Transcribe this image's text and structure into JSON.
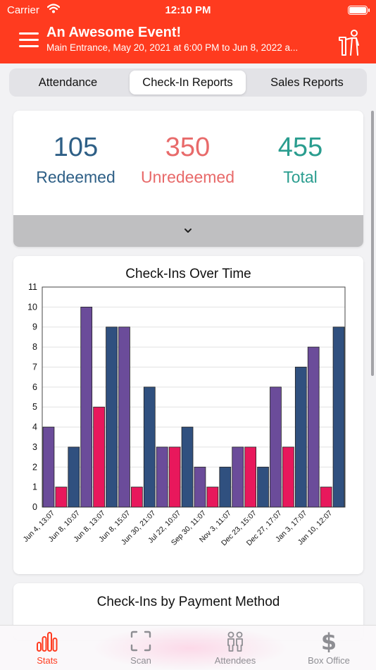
{
  "status_bar": {
    "carrier": "Carrier",
    "time": "12:10 PM"
  },
  "header": {
    "title": "An Awesome Event!",
    "subtitle": "Main Entrance, May 20, 2021 at 6:00 PM to Jun  8, 2022 a..."
  },
  "tabs": [
    {
      "label": "Attendance",
      "active": false
    },
    {
      "label": "Check-In Reports",
      "active": true
    },
    {
      "label": "Sales Reports",
      "active": false
    }
  ],
  "summary": {
    "redeemed": {
      "value": "105",
      "label": "Redeemed",
      "color": "#2e5f86"
    },
    "unredeemed": {
      "value": "350",
      "label": "Unredeemed",
      "color": "#e86a6a"
    },
    "total": {
      "value": "455",
      "label": "Total",
      "color": "#2a9d8f"
    }
  },
  "chart_data": {
    "type": "bar",
    "title": "Check-Ins Over Time",
    "ylim": [
      0,
      11
    ],
    "yticks": [
      0,
      1,
      2,
      3,
      4,
      5,
      6,
      7,
      8,
      9,
      10,
      11
    ],
    "grid": true,
    "categories": [
      "Jun 4, 13:07",
      "Jun 8, 10:07",
      "Jun 8, 13:07",
      "Jun 8, 15:07",
      "Jun 30, 21:07",
      "Jul 22, 10:07",
      "Sep 30, 11:07",
      "Nov 3, 11:07",
      "Dec 23, 15:07",
      "Dec 27, 17:07",
      "Jan 3, 17:07",
      "Jan 10, 12:07"
    ],
    "bars": [
      {
        "value": 4,
        "color": "#6b4c9a"
      },
      {
        "value": 1,
        "color": "#e8185c"
      },
      {
        "value": 3,
        "color": "#30507f"
      },
      {
        "value": 10,
        "color": "#6b4c9a"
      },
      {
        "value": 5,
        "color": "#e8185c"
      },
      {
        "value": 9,
        "color": "#30507f"
      },
      {
        "value": 9,
        "color": "#6b4c9a"
      },
      {
        "value": 1,
        "color": "#e8185c"
      },
      {
        "value": 6,
        "color": "#30507f"
      },
      {
        "value": 3,
        "color": "#6b4c9a"
      },
      {
        "value": 3,
        "color": "#e8185c"
      },
      {
        "value": 4,
        "color": "#30507f"
      },
      {
        "value": 2,
        "color": "#6b4c9a"
      },
      {
        "value": 1,
        "color": "#e8185c"
      },
      {
        "value": 2,
        "color": "#30507f"
      },
      {
        "value": 3,
        "color": "#6b4c9a"
      },
      {
        "value": 3,
        "color": "#e8185c"
      },
      {
        "value": 2,
        "color": "#30507f"
      },
      {
        "value": 6,
        "color": "#6b4c9a"
      },
      {
        "value": 3,
        "color": "#e8185c"
      },
      {
        "value": 7,
        "color": "#30507f"
      },
      {
        "value": 8,
        "color": "#6b4c9a"
      },
      {
        "value": 1,
        "color": "#e8185c"
      },
      {
        "value": 9,
        "color": "#30507f"
      }
    ]
  },
  "payment_card": {
    "title": "Check-Ins by Payment Method"
  },
  "tab_bar": [
    {
      "label": "Stats",
      "icon": "bar-chart-icon",
      "active": true
    },
    {
      "label": "Scan",
      "icon": "scan-icon",
      "active": false
    },
    {
      "label": "Attendees",
      "icon": "attendees-icon",
      "active": false
    },
    {
      "label": "Box Office",
      "icon": "dollar-icon",
      "active": false
    }
  ],
  "colors": {
    "brand": "#ff3b1f"
  }
}
